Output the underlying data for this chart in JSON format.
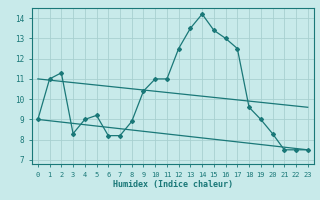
{
  "xlabel": "Humidex (Indice chaleur)",
  "background_color": "#c8eaea",
  "grid_color": "#a8d0d0",
  "line_color": "#1a7878",
  "xlim": [
    -0.5,
    23.5
  ],
  "ylim": [
    6.8,
    14.5
  ],
  "xticks": [
    0,
    1,
    2,
    3,
    4,
    5,
    6,
    7,
    8,
    9,
    10,
    11,
    12,
    13,
    14,
    15,
    16,
    17,
    18,
    19,
    20,
    21,
    22,
    23
  ],
  "yticks": [
    7,
    8,
    9,
    10,
    11,
    12,
    13,
    14
  ],
  "humidex_x": [
    0,
    1,
    2,
    3,
    4,
    5,
    6,
    7,
    8,
    9,
    10,
    11,
    12,
    13,
    14,
    15,
    16,
    17,
    18,
    19,
    20,
    21,
    22,
    23
  ],
  "humidex_y": [
    9.0,
    11.0,
    11.3,
    8.3,
    9.0,
    9.2,
    8.2,
    8.2,
    8.9,
    10.4,
    11.0,
    11.0,
    12.5,
    13.5,
    14.2,
    13.4,
    13.0,
    12.5,
    9.6,
    9.0,
    8.3,
    7.5,
    7.5,
    7.5
  ],
  "upper_line_x": [
    0,
    23
  ],
  "upper_line_y": [
    11.0,
    9.6
  ],
  "lower_line_x": [
    0,
    23
  ],
  "lower_line_y": [
    9.0,
    7.5
  ]
}
